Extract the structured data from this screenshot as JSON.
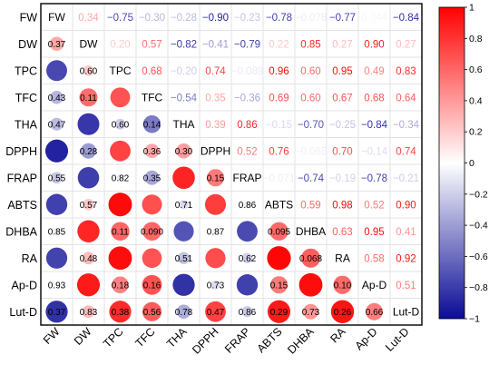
{
  "chart_data": {
    "type": "heatmap",
    "variables": [
      "FW",
      "DW",
      "TPC",
      "TFC",
      "THA",
      "DPPH",
      "FRAP",
      "ABTS",
      "DHBA",
      "RA",
      "Ap-D",
      "Lut-D"
    ],
    "upper_triangle_note": "correlation coefficients (r) shown as coloured numbers",
    "correlations": [
      {
        "row": "FW",
        "col": "DW",
        "label": "0.34",
        "value": 0.34
      },
      {
        "row": "FW",
        "col": "TPC",
        "label": "−0.75",
        "value": -0.75
      },
      {
        "row": "FW",
        "col": "TFC",
        "label": "−0.30",
        "value": -0.3
      },
      {
        "row": "FW",
        "col": "THA",
        "label": "−0.28",
        "value": -0.28
      },
      {
        "row": "FW",
        "col": "DPPH",
        "label": "−0.90",
        "value": -0.9
      },
      {
        "row": "FW",
        "col": "FRAP",
        "label": "−0.23",
        "value": -0.23
      },
      {
        "row": "FW",
        "col": "ABTS",
        "label": "−0.78",
        "value": -0.78
      },
      {
        "row": "FW",
        "col": "DHBA",
        "label": "−0.078",
        "value": -0.078
      },
      {
        "row": "FW",
        "col": "RA",
        "label": "−0.77",
        "value": -0.77
      },
      {
        "row": "FW",
        "col": "Ap-D",
        "label": "0.044",
        "value": 0.044
      },
      {
        "row": "FW",
        "col": "Lut-D",
        "label": "−0.84",
        "value": -0.84
      },
      {
        "row": "DW",
        "col": "TPC",
        "label": "0.20",
        "value": 0.2
      },
      {
        "row": "DW",
        "col": "TFC",
        "label": "0.57",
        "value": 0.57
      },
      {
        "row": "DW",
        "col": "THA",
        "label": "−0.82",
        "value": -0.82
      },
      {
        "row": "DW",
        "col": "DPPH",
        "label": "−0.41",
        "value": -0.41
      },
      {
        "row": "DW",
        "col": "FRAP",
        "label": "−0.79",
        "value": -0.79
      },
      {
        "row": "DW",
        "col": "ABTS",
        "label": "0.22",
        "value": 0.22
      },
      {
        "row": "DW",
        "col": "DHBA",
        "label": "0.85",
        "value": 0.85
      },
      {
        "row": "DW",
        "col": "RA",
        "label": "0.27",
        "value": 0.27
      },
      {
        "row": "DW",
        "col": "Ap-D",
        "label": "0.90",
        "value": 0.9
      },
      {
        "row": "DW",
        "col": "Lut-D",
        "label": "0.27",
        "value": 0.27
      },
      {
        "row": "TPC",
        "col": "TFC",
        "label": "0.68",
        "value": 0.68
      },
      {
        "row": "TPC",
        "col": "THA",
        "label": "−0.20",
        "value": -0.2
      },
      {
        "row": "TPC",
        "col": "DPPH",
        "label": "0.74",
        "value": 0.74
      },
      {
        "row": "TPC",
        "col": "FRAP",
        "label": "−0.089",
        "value": -0.089
      },
      {
        "row": "TPC",
        "col": "ABTS",
        "label": "0.96",
        "value": 0.96
      },
      {
        "row": "TPC",
        "col": "DHBA",
        "label": "0.60",
        "value": 0.6
      },
      {
        "row": "TPC",
        "col": "RA",
        "label": "0.95",
        "value": 0.95
      },
      {
        "row": "TPC",
        "col": "Ap-D",
        "label": "0.49",
        "value": 0.49
      },
      {
        "row": "TPC",
        "col": "Lut-D",
        "label": "0.83",
        "value": 0.83
      },
      {
        "row": "TFC",
        "col": "THA",
        "label": "−0.54",
        "value": -0.54
      },
      {
        "row": "TFC",
        "col": "DPPH",
        "label": "0.35",
        "value": 0.35
      },
      {
        "row": "TFC",
        "col": "FRAP",
        "label": "−0.36",
        "value": -0.36
      },
      {
        "row": "TFC",
        "col": "ABTS",
        "label": "0.69",
        "value": 0.69
      },
      {
        "row": "TFC",
        "col": "DHBA",
        "label": "0.60",
        "value": 0.6
      },
      {
        "row": "TFC",
        "col": "RA",
        "label": "0.67",
        "value": 0.67
      },
      {
        "row": "TFC",
        "col": "Ap-D",
        "label": "0.68",
        "value": 0.68
      },
      {
        "row": "TFC",
        "col": "Lut-D",
        "label": "0.64",
        "value": 0.64
      },
      {
        "row": "THA",
        "col": "DPPH",
        "label": "0.39",
        "value": 0.39
      },
      {
        "row": "THA",
        "col": "FRAP",
        "label": "0.86",
        "value": 0.86
      },
      {
        "row": "THA",
        "col": "ABTS",
        "label": "−0.15",
        "value": -0.15
      },
      {
        "row": "THA",
        "col": "DHBA",
        "label": "−0.70",
        "value": -0.7
      },
      {
        "row": "THA",
        "col": "RA",
        "label": "−0.25",
        "value": -0.25
      },
      {
        "row": "THA",
        "col": "Ap-D",
        "label": "−0.84",
        "value": -0.84
      },
      {
        "row": "THA",
        "col": "Lut-D",
        "label": "−0.34",
        "value": -0.34
      },
      {
        "row": "DPPH",
        "col": "FRAP",
        "label": "0.52",
        "value": 0.52
      },
      {
        "row": "DPPH",
        "col": "ABTS",
        "label": "0.76",
        "value": 0.76
      },
      {
        "row": "DPPH",
        "col": "DHBA",
        "label": "−0.065",
        "value": -0.065
      },
      {
        "row": "DPPH",
        "col": "RA",
        "label": "0.70",
        "value": 0.7
      },
      {
        "row": "DPPH",
        "col": "Ap-D",
        "label": "−0.14",
        "value": -0.14
      },
      {
        "row": "DPPH",
        "col": "Lut-D",
        "label": "0.74",
        "value": 0.74
      },
      {
        "row": "FRAP",
        "col": "ABTS",
        "label": "−0.071",
        "value": -0.071
      },
      {
        "row": "FRAP",
        "col": "DHBA",
        "label": "−0.74",
        "value": -0.74
      },
      {
        "row": "FRAP",
        "col": "RA",
        "label": "−0.19",
        "value": -0.19
      },
      {
        "row": "FRAP",
        "col": "Ap-D",
        "label": "−0.78",
        "value": -0.78
      },
      {
        "row": "FRAP",
        "col": "Lut-D",
        "label": "−0.21",
        "value": -0.21
      },
      {
        "row": "ABTS",
        "col": "DHBA",
        "label": "0.59",
        "value": 0.59
      },
      {
        "row": "ABTS",
        "col": "RA",
        "label": "0.98",
        "value": 0.98
      },
      {
        "row": "ABTS",
        "col": "Ap-D",
        "label": "0.52",
        "value": 0.52
      },
      {
        "row": "ABTS",
        "col": "Lut-D",
        "label": "0.90",
        "value": 0.9
      },
      {
        "row": "DHBA",
        "col": "RA",
        "label": "0.63",
        "value": 0.63
      },
      {
        "row": "DHBA",
        "col": "Ap-D",
        "label": "0.95",
        "value": 0.95
      },
      {
        "row": "DHBA",
        "col": "Lut-D",
        "label": "0.41",
        "value": 0.41
      },
      {
        "row": "RA",
        "col": "Ap-D",
        "label": "0.58",
        "value": 0.58
      },
      {
        "row": "RA",
        "col": "Lut-D",
        "label": "0.92",
        "value": 0.92
      },
      {
        "row": "Ap-D",
        "col": "Lut-D",
        "label": "0.51",
        "value": 0.51
      }
    ],
    "lower_triangle_note": "circles sized and coloured by r, with p-values printed on them",
    "pvalues": [
      {
        "row": "DW",
        "col": "FW",
        "label": "0.37"
      },
      {
        "row": "TPC",
        "col": "DW",
        "label": "0.60"
      },
      {
        "row": "TFC",
        "col": "FW",
        "label": "0.43"
      },
      {
        "row": "TFC",
        "col": "DW",
        "label": "0.11"
      },
      {
        "row": "THA",
        "col": "FW",
        "label": "0.47"
      },
      {
        "row": "THA",
        "col": "TPC",
        "label": "0.60"
      },
      {
        "row": "THA",
        "col": "TFC",
        "label": "0.14"
      },
      {
        "row": "DPPH",
        "col": "DW",
        "label": "0.28"
      },
      {
        "row": "DPPH",
        "col": "TFC",
        "label": "0.36"
      },
      {
        "row": "DPPH",
        "col": "THA",
        "label": "0.30"
      },
      {
        "row": "FRAP",
        "col": "FW",
        "label": "0.55"
      },
      {
        "row": "FRAP",
        "col": "TPC",
        "label": "0.82"
      },
      {
        "row": "FRAP",
        "col": "TFC",
        "label": "0.35"
      },
      {
        "row": "FRAP",
        "col": "DPPH",
        "label": "0.15"
      },
      {
        "row": "ABTS",
        "col": "DW",
        "label": "0.57"
      },
      {
        "row": "ABTS",
        "col": "THA",
        "label": "0.71"
      },
      {
        "row": "ABTS",
        "col": "FRAP",
        "label": "0.86"
      },
      {
        "row": "DHBA",
        "col": "FW",
        "label": "0.85"
      },
      {
        "row": "DHBA",
        "col": "TPC",
        "label": "0.11"
      },
      {
        "row": "DHBA",
        "col": "TFC",
        "label": "0.090"
      },
      {
        "row": "DHBA",
        "col": "DPPH",
        "label": "0.87"
      },
      {
        "row": "DHBA",
        "col": "ABTS",
        "label": "0.095"
      },
      {
        "row": "RA",
        "col": "DW",
        "label": "0.48"
      },
      {
        "row": "RA",
        "col": "THA",
        "label": "0.51"
      },
      {
        "row": "RA",
        "col": "FRAP",
        "label": "0.62"
      },
      {
        "row": "RA",
        "col": "DHBA",
        "label": "0.068"
      },
      {
        "row": "Ap-D",
        "col": "FW",
        "label": "0.93"
      },
      {
        "row": "Ap-D",
        "col": "TPC",
        "label": "0.18"
      },
      {
        "row": "Ap-D",
        "col": "TFC",
        "label": "0.16"
      },
      {
        "row": "Ap-D",
        "col": "DPPH",
        "label": "0.73"
      },
      {
        "row": "Ap-D",
        "col": "ABTS",
        "label": "0.15"
      },
      {
        "row": "Ap-D",
        "col": "RA",
        "label": "0.10"
      },
      {
        "row": "Lut-D",
        "col": "FW",
        "label": "0.37"
      },
      {
        "row": "Lut-D",
        "col": "DW",
        "label": "0.83"
      },
      {
        "row": "Lut-D",
        "col": "TPC",
        "label": "0.38"
      },
      {
        "row": "Lut-D",
        "col": "TFC",
        "label": "0.56"
      },
      {
        "row": "Lut-D",
        "col": "THA",
        "label": "0.78"
      },
      {
        "row": "Lut-D",
        "col": "DPPH",
        "label": "0.47"
      },
      {
        "row": "Lut-D",
        "col": "FRAP",
        "label": "0.86"
      },
      {
        "row": "Lut-D",
        "col": "ABTS",
        "label": "0.29"
      },
      {
        "row": "Lut-D",
        "col": "DHBA",
        "label": "0.73"
      },
      {
        "row": "Lut-D",
        "col": "RA",
        "label": "0.26"
      },
      {
        "row": "Lut-D",
        "col": "Ap-D",
        "label": "0.66"
      }
    ],
    "colorbar": {
      "range": [
        -1,
        1
      ],
      "ticks": [
        1,
        0.8,
        0.6,
        0.4,
        0.2,
        0,
        -0.2,
        -0.4,
        -0.6,
        -0.8,
        -1
      ],
      "tick_labels": [
        "1",
        "0.8",
        "0.6",
        "0.4",
        "0.2",
        "0",
        "−0.2",
        "−0.4",
        "−0.6",
        "−0.8",
        "−1"
      ],
      "colors": {
        "negative": "#0b0b96",
        "zero": "#ffffff",
        "positive": "#ff0000"
      }
    },
    "title": "",
    "xlabel": "",
    "ylabel": "",
    "grid": true,
    "legend": "right (colorbar)"
  }
}
